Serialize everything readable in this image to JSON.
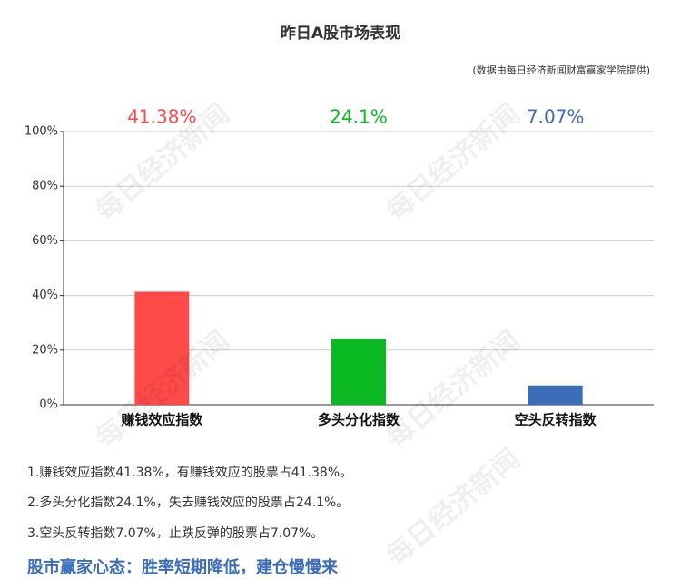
{
  "chart_data": {
    "type": "bar",
    "title": "昨日A股市场表现",
    "subtitle": "(数据由每日经济新闻财富赢家学院提供)",
    "categories": [
      "赚钱效应指数",
      "多头分化指数",
      "空头反转指数"
    ],
    "values": [
      41.38,
      24.1,
      7.07
    ],
    "value_labels": [
      "41.38%",
      "24.1%",
      "7.07%"
    ],
    "colors": [
      "#ff4a4a",
      "#0ab922",
      "#3b6db8"
    ],
    "ylim": [
      0,
      100
    ],
    "yticks": [
      {
        "value": 0,
        "label": "0%"
      },
      {
        "value": 20,
        "label": "20%"
      },
      {
        "value": 40,
        "label": "40%"
      },
      {
        "value": 60,
        "label": "60%"
      },
      {
        "value": 80,
        "label": "80%"
      },
      {
        "value": 100,
        "label": "100%"
      }
    ],
    "grid": true
  },
  "watermark": "每日经济新闻",
  "notes": [
    "1.赚钱效应指数41.38%，有赚钱效应的股票占41.38%。",
    "2.多头分化指数24.1%，失去赚钱效应的股票占24.1%。",
    "3.空头反转指数7.07%，止跌反弹的股票占7.07%。"
  ],
  "headline": "股市赢家心态：胜率短期降低，建仓慢慢来"
}
